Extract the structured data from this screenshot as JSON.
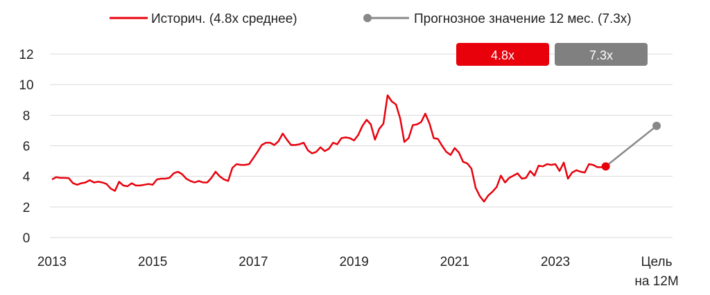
{
  "chart_data": {
    "type": "line",
    "title": "",
    "xlabel": "",
    "ylabel": "",
    "ylim": [
      0,
      12
    ],
    "yticks": [
      "0",
      "2",
      "4",
      "6",
      "8",
      "10",
      "12"
    ],
    "xticks": [
      "2013",
      "2015",
      "2017",
      "2019",
      "2021",
      "2023"
    ],
    "target_label_lines": [
      "Цель",
      "на 12М"
    ],
    "grid": "horizontal",
    "legend_position": "top",
    "colors": {
      "historical": "#e8000b",
      "forecast": "#888888",
      "grid": "#d9d9d9"
    },
    "badges": [
      {
        "label": "4.8x",
        "color": "#e8000b"
      },
      {
        "label": "7.3x",
        "color": "#808080"
      }
    ],
    "series": [
      {
        "name": "Историч. (4.8х среднее)",
        "x_start": "2013-01",
        "frequency": "monthly",
        "values": [
          3.8,
          3.95,
          3.9,
          3.9,
          3.88,
          3.55,
          3.45,
          3.55,
          3.6,
          3.75,
          3.6,
          3.65,
          3.6,
          3.5,
          3.2,
          3.05,
          3.65,
          3.4,
          3.35,
          3.55,
          3.4,
          3.4,
          3.45,
          3.5,
          3.45,
          3.8,
          3.85,
          3.85,
          3.9,
          4.2,
          4.3,
          4.15,
          3.85,
          3.7,
          3.6,
          3.7,
          3.6,
          3.6,
          3.9,
          4.3,
          4.0,
          3.8,
          3.7,
          4.55,
          4.8,
          4.75,
          4.75,
          4.8,
          5.2,
          5.6,
          6.05,
          6.2,
          6.2,
          6.05,
          6.3,
          6.8,
          6.4,
          6.05,
          6.05,
          6.1,
          6.2,
          5.7,
          5.5,
          5.6,
          5.9,
          5.65,
          5.8,
          6.2,
          6.1,
          6.5,
          6.55,
          6.5,
          6.35,
          6.7,
          7.3,
          7.7,
          7.4,
          6.4,
          7.1,
          7.45,
          9.3,
          8.9,
          8.7,
          7.8,
          6.25,
          6.5,
          7.35,
          7.4,
          7.55,
          8.1,
          7.45,
          6.5,
          6.45,
          6.0,
          5.6,
          5.4,
          5.85,
          5.55,
          4.95,
          4.85,
          4.5,
          3.25,
          2.7,
          2.35,
          2.75,
          3.0,
          3.3,
          4.05,
          3.6,
          3.9,
          4.05,
          4.2,
          3.85,
          3.9,
          4.35,
          4.05,
          4.7,
          4.65,
          4.8,
          4.75,
          4.8,
          4.35,
          4.9,
          3.85,
          4.25,
          4.4,
          4.3,
          4.25,
          4.8,
          4.75,
          4.6,
          4.6,
          4.65
        ]
      },
      {
        "name": "Прогнозное значение 12 мес. (7.3x)",
        "points": [
          {
            "x": "2024-01",
            "y": 4.65
          },
          {
            "x": "Цель на 12М",
            "y": 7.3
          }
        ]
      }
    ]
  }
}
